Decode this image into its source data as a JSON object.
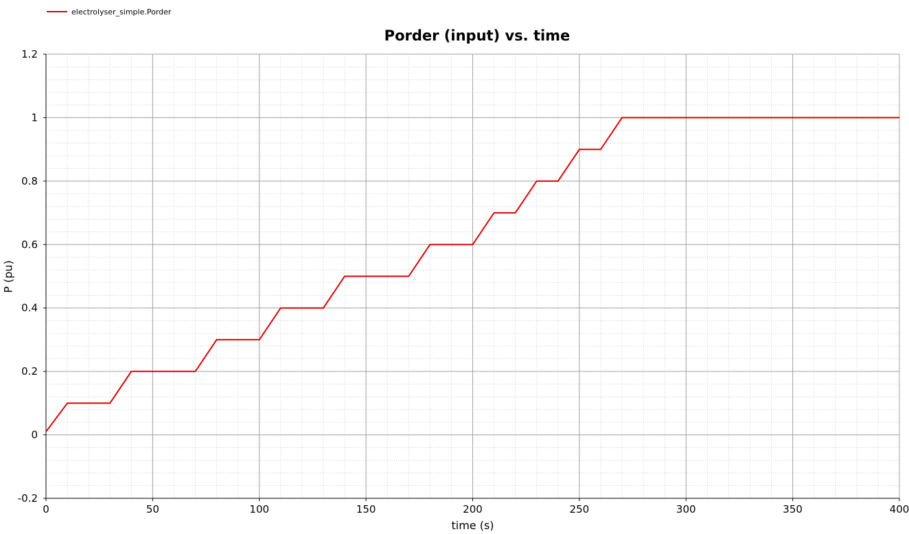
{
  "legend": {
    "label": "electrolyser_simple.Porder",
    "color": "#e00000"
  },
  "chart_data": {
    "type": "line",
    "title": "Porder (input) vs. time",
    "xlabel": "time (s)",
    "ylabel": "P (pu)",
    "xlim": [
      0,
      400
    ],
    "ylim": [
      -0.2,
      1.2
    ],
    "xticks": [
      0,
      50,
      100,
      150,
      200,
      250,
      300,
      350,
      400
    ],
    "xtick_labels": [
      "0",
      "50",
      "100",
      "150",
      "200",
      "250",
      "300",
      "350",
      "400"
    ],
    "yticks": [
      -0.2,
      0,
      0.2,
      0.4,
      0.6,
      0.8,
      1,
      1.2
    ],
    "ytick_labels": [
      "-0.2",
      "0",
      "0.2",
      "0.4",
      "0.6",
      "0.8",
      "1",
      "1.2"
    ],
    "grid": true,
    "legend_position": "top-left",
    "series": [
      {
        "name": "electrolyser_simple.Porder",
        "color": "#e00000",
        "x": [
          0,
          10,
          30,
          40,
          70,
          80,
          100,
          110,
          130,
          140,
          170,
          180,
          200,
          210,
          220,
          230,
          240,
          250,
          260,
          270,
          400
        ],
        "y": [
          0.01,
          0.1,
          0.1,
          0.2,
          0.2,
          0.3,
          0.3,
          0.4,
          0.4,
          0.5,
          0.5,
          0.6,
          0.6,
          0.7,
          0.7,
          0.8,
          0.8,
          0.9,
          0.9,
          1.0,
          1.0
        ]
      }
    ]
  }
}
